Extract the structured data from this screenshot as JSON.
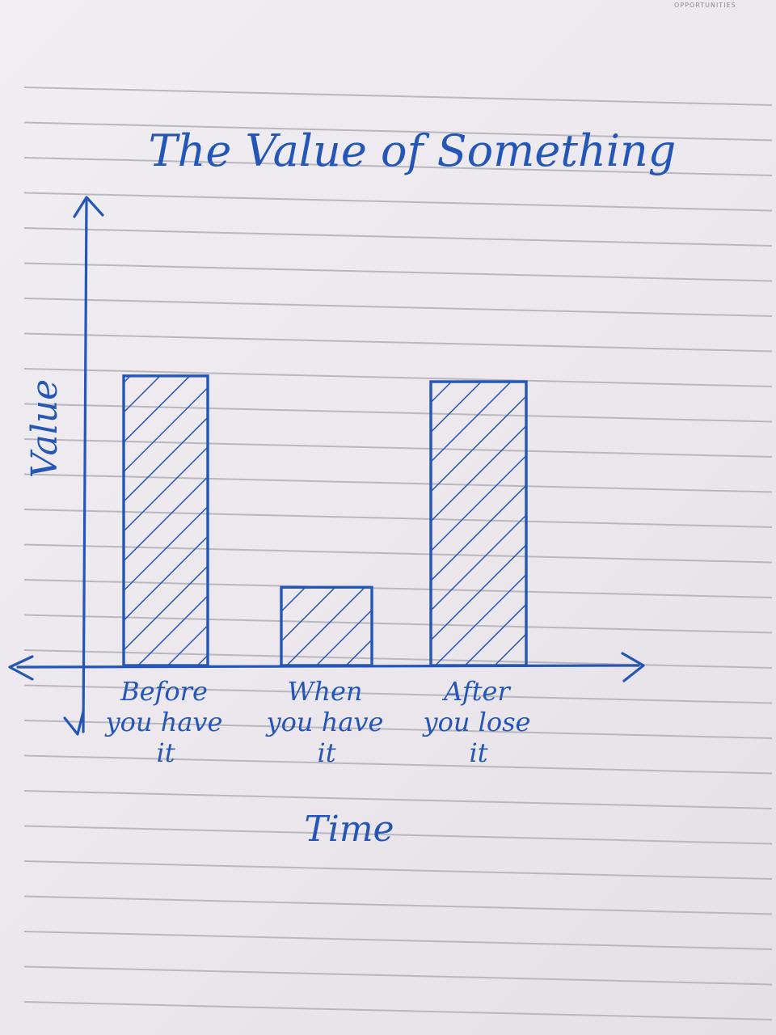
{
  "page": {
    "corner_note": "OPPORTUNITIES",
    "paper_color": "#ece8ee",
    "rule_color": "#b9b7be",
    "ink_color": "#2456b8"
  },
  "chart_data": {
    "type": "bar",
    "title": "The Value of Something",
    "xlabel": "Time",
    "ylabel": "Value",
    "categories": [
      [
        "Before",
        "you have",
        "it"
      ],
      [
        "When",
        "you have",
        "it"
      ],
      [
        "After",
        "you lose",
        "it"
      ]
    ],
    "values": [
      10,
      2.7,
      9.8
    ],
    "ylim": [
      0,
      16
    ],
    "grid": false,
    "legend": "none",
    "bar_fill": "diagonal-hatch"
  }
}
